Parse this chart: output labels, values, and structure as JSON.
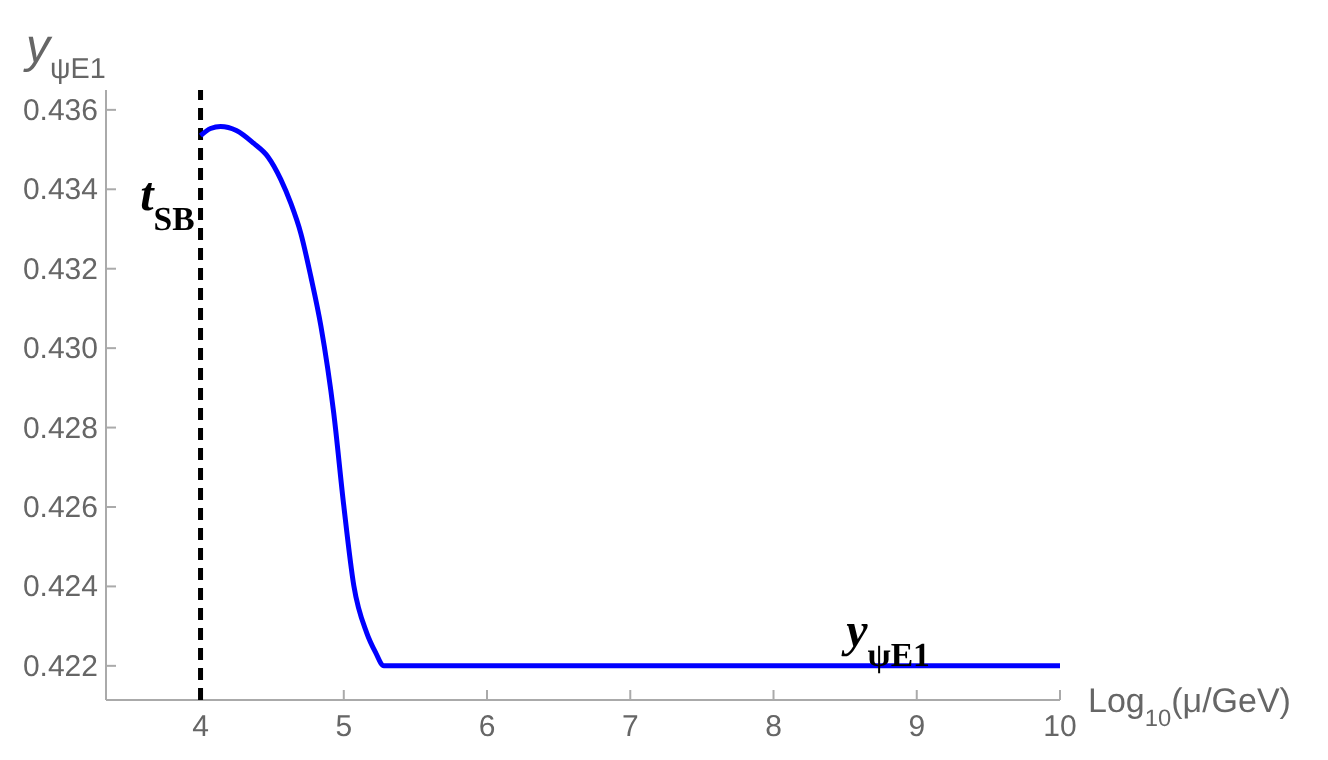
{
  "chart_data": {
    "type": "line",
    "xlabel": "Log$_{10}$(μ/GeV)",
    "ylabel": "y$_{ψE1}$",
    "x": [
      4,
      4.07,
      4.14,
      4.25,
      4.37,
      4.47,
      4.56,
      4.63,
      4.7,
      4.77,
      4.84,
      4.93,
      5.0,
      5.07,
      5.16,
      5.22,
      5.28,
      6,
      7,
      8,
      9,
      10
    ],
    "series": [
      {
        "color": "#0000ff",
        "values": [
          0.43535,
          0.43553,
          0.43558,
          0.43548,
          0.43516,
          0.43482,
          0.43425,
          0.43365,
          0.43289,
          0.4318,
          0.43056,
          0.42836,
          0.42603,
          0.42402,
          0.42283,
          0.42235,
          0.422,
          0.422,
          0.422,
          0.422,
          0.422,
          0.422
        ]
      }
    ],
    "xlim": [
      3.34,
      10
    ],
    "ylim": [
      0.42114,
      0.4365
    ],
    "xticks": [
      4,
      5,
      6,
      7,
      8,
      9,
      10
    ],
    "yticks": [
      {
        "value": 0.422,
        "label": "0.422"
      },
      {
        "value": 0.424,
        "label": "0.424"
      },
      {
        "value": 0.426,
        "label": "0.426"
      },
      {
        "value": 0.428,
        "label": "0.428"
      },
      {
        "value": 0.43,
        "label": "0.430"
      },
      {
        "value": 0.432,
        "label": "0.432"
      },
      {
        "value": 0.434,
        "label": "0.434"
      },
      {
        "value": 0.436,
        "label": "0.436"
      }
    ],
    "ref_lines": [
      {
        "axis": "x",
        "value": 4,
        "label": "t$_{SB}$",
        "color": "#000000",
        "line_style": "dashed"
      }
    ],
    "annotations": [
      {
        "text": "y$_{ψE1}$",
        "x": 8.8,
        "y": 0.4222
      }
    ],
    "grid": false,
    "line_style": "solid",
    "marker": "none"
  }
}
